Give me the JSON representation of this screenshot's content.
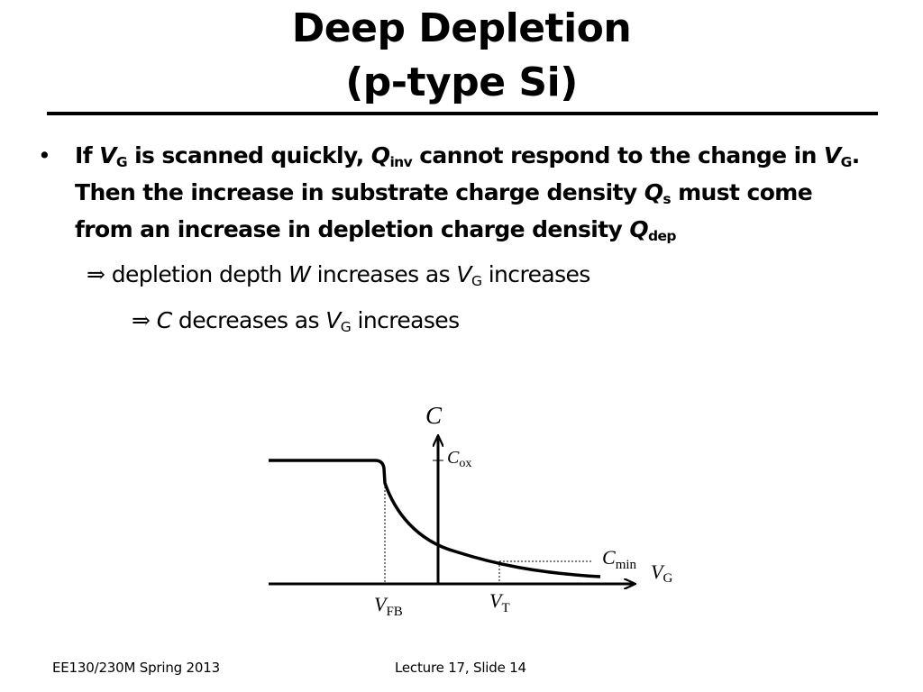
{
  "title": {
    "line1": "Deep Depletion",
    "line2": "(p-type Si)"
  },
  "bullet": {
    "marker": "•",
    "t1": "If ",
    "v1": "V",
    "v1_sub": "G",
    "t2": " is scanned quickly, ",
    "q1": "Q",
    "q1_sub": "inv",
    "t3": " cannot respond to the change in ",
    "v2": "V",
    "v2_sub": "G",
    "t4": ".  Then the increase in substrate charge density ",
    "q2": "Q",
    "q2_sub": "s",
    "t5": " must come from an increase in depletion charge density ",
    "q3": "Q",
    "q3_sub": "dep"
  },
  "sub_points": {
    "line1": {
      "arrow": "⇒",
      "t1": " depletion depth ",
      "var1": "W",
      "t2": " increases as ",
      "var2": "V",
      "var2_sub": "G",
      "t3": " increases"
    },
    "line2": {
      "arrow": "⇒",
      "var1": "C",
      "t1": " decreases as ",
      "var2": "V",
      "var2_sub": "G",
      "t2": " increases"
    }
  },
  "diagram": {
    "y_axis_label": "C",
    "x_axis_label": "V",
    "x_axis_label_sub": "G",
    "cox_label": "C",
    "cox_label_sub": "ox",
    "cmin_label": "C",
    "cmin_label_sub": "min",
    "vfb_label": "V",
    "vfb_label_sub": "FB",
    "vt_label": "V",
    "vt_label_sub": "T"
  },
  "footer": {
    "course": "EE130/230M Spring 2013",
    "slide": "Lecture 17, Slide 14"
  }
}
